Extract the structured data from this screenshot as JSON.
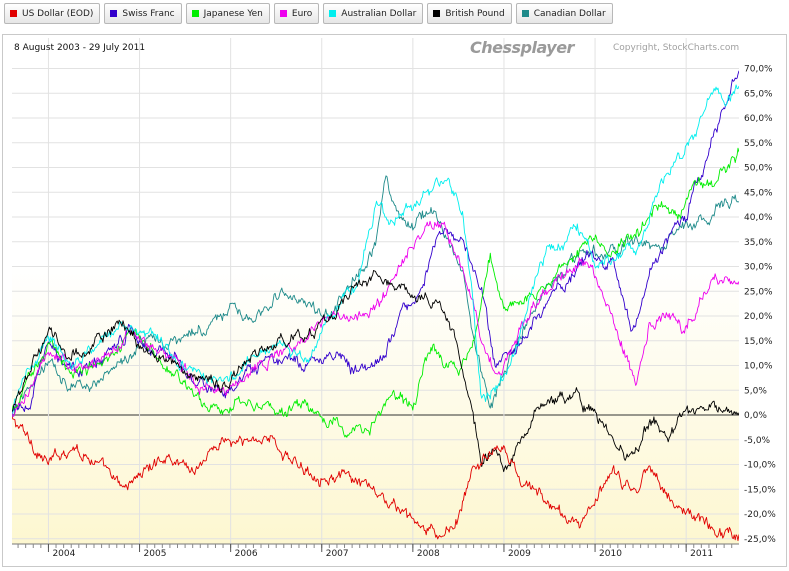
{
  "legend": [
    {
      "label": "US Dollar (EOD)",
      "color": "#e00000"
    },
    {
      "label": "Swiss Franc",
      "color": "#3300cc"
    },
    {
      "label": "Japanese Yen",
      "color": "#00ee00"
    },
    {
      "label": "Euro",
      "color": "#ee00ee"
    },
    {
      "label": "Australian Dollar",
      "color": "#00eeee"
    },
    {
      "label": "British Pound",
      "color": "#000000"
    },
    {
      "label": "Canadian Dollar",
      "color": "#1e8a8a"
    }
  ],
  "header": {
    "date_range": "8 August 2003 - 29 July 2011",
    "watermark": "Chessplayer",
    "copyright": "Copyright, StockCharts.com"
  },
  "chart_data": {
    "type": "line",
    "title": "",
    "xlabel": "",
    "ylabel": "",
    "x_range": [
      2003.6,
      2011.58
    ],
    "ylim": [
      -26,
      72
    ],
    "y_ticks": [
      70,
      65,
      60,
      55,
      50,
      45,
      40,
      35,
      30,
      25,
      20,
      15,
      10,
      5,
      0,
      -5,
      -10,
      -15,
      -20,
      -25
    ],
    "y_tick_labels": [
      "70,0%",
      "65,0%",
      "60,0%",
      "55,0%",
      "50,0%",
      "45,0%",
      "40,0%",
      "35,0%",
      "30,0%",
      "25,0%",
      "20,0%",
      "15,0%",
      "10,0%",
      "5,0%",
      "0,0%",
      "-5,0%",
      "-10,0%",
      "-15,0%",
      "-20,0%",
      "-25,0%"
    ],
    "x_ticks": [
      2004,
      2005,
      2006,
      2007,
      2008,
      2009,
      2010,
      2011
    ],
    "x_tick_labels": [
      "2004",
      "2005",
      "2006",
      "2007",
      "2008",
      "2009",
      "2010",
      "2011"
    ],
    "zero_line": 0,
    "series": [
      {
        "name": "US Dollar (EOD)",
        "color": "#e00000",
        "x": [
          2003.6,
          2003.75,
          2004.0,
          2004.25,
          2004.5,
          2004.8,
          2005.0,
          2005.3,
          2005.6,
          2005.9,
          2006.1,
          2006.4,
          2006.7,
          2007.0,
          2007.3,
          2007.6,
          2007.9,
          2008.1,
          2008.3,
          2008.5,
          2008.65,
          2008.8,
          2009.0,
          2009.2,
          2009.4,
          2009.6,
          2009.8,
          2009.95,
          2010.2,
          2010.45,
          2010.6,
          2010.85,
          2011.05,
          2011.3,
          2011.58
        ],
        "y": [
          -1,
          -4,
          -10,
          -6,
          -9,
          -15,
          -12,
          -8,
          -11,
          -5,
          -6,
          -4,
          -10,
          -12,
          -13,
          -16,
          -20,
          -23,
          -25,
          -21,
          -12,
          -8,
          -7,
          -14,
          -16,
          -20,
          -22,
          -19,
          -12,
          -16,
          -9,
          -18,
          -20,
          -23,
          -24
        ]
      },
      {
        "name": "Swiss Franc",
        "color": "#3300cc",
        "x": [
          2003.6,
          2003.8,
          2004.0,
          2004.3,
          2004.6,
          2004.9,
          2005.1,
          2005.4,
          2005.7,
          2005.95,
          2006.2,
          2006.5,
          2006.8,
          2007.1,
          2007.4,
          2007.7,
          2007.9,
          2008.1,
          2008.3,
          2008.6,
          2008.75,
          2008.9,
          2009.1,
          2009.3,
          2009.6,
          2009.9,
          2010.2,
          2010.4,
          2010.6,
          2010.8,
          2011.0,
          2011.2,
          2011.4,
          2011.58
        ],
        "y": [
          0,
          3,
          14,
          8,
          12,
          18,
          14,
          12,
          6,
          4,
          8,
          11,
          10,
          13,
          9,
          12,
          22,
          26,
          38,
          33,
          25,
          10,
          12,
          18,
          26,
          32,
          30,
          17,
          28,
          36,
          40,
          50,
          62,
          70
        ]
      },
      {
        "name": "Japanese Yen",
        "color": "#00ee00",
        "x": [
          2003.6,
          2003.8,
          2004.0,
          2004.3,
          2004.6,
          2004.9,
          2005.1,
          2005.4,
          2005.7,
          2005.9,
          2006.2,
          2006.5,
          2006.8,
          2007.1,
          2007.4,
          2007.6,
          2007.8,
          2008.0,
          2008.2,
          2008.5,
          2008.7,
          2008.85,
          2009.0,
          2009.2,
          2009.4,
          2009.6,
          2009.9,
          2010.2,
          2010.5,
          2010.7,
          2010.9,
          2011.1,
          2011.35,
          2011.58
        ],
        "y": [
          0,
          8,
          14,
          9,
          11,
          17,
          13,
          8,
          3,
          1,
          4,
          0,
          2,
          -2,
          -4,
          -1,
          4,
          2,
          14,
          8,
          18,
          32,
          20,
          24,
          25,
          30,
          35,
          34,
          37,
          42,
          40,
          46,
          48,
          53
        ]
      },
      {
        "name": "Euro",
        "color": "#ee00ee",
        "x": [
          2003.6,
          2003.8,
          2004.0,
          2004.3,
          2004.6,
          2004.9,
          2005.1,
          2005.4,
          2005.7,
          2005.95,
          2006.2,
          2006.5,
          2006.8,
          2007.1,
          2007.4,
          2007.7,
          2007.95,
          2008.15,
          2008.35,
          2008.55,
          2008.75,
          2008.95,
          2009.1,
          2009.3,
          2009.6,
          2009.9,
          2010.1,
          2010.3,
          2010.45,
          2010.6,
          2010.8,
          2011.0,
          2011.2,
          2011.4,
          2011.58
        ],
        "y": [
          0,
          4,
          14,
          9,
          11,
          17,
          14,
          10,
          6,
          5,
          9,
          13,
          15,
          20,
          19,
          24,
          33,
          38,
          40,
          29,
          15,
          8,
          15,
          21,
          28,
          32,
          25,
          14,
          6,
          18,
          20,
          17,
          25,
          28,
          26
        ]
      },
      {
        "name": "Australian Dollar",
        "color": "#00eeee",
        "x": [
          2003.6,
          2003.75,
          2004.0,
          2004.25,
          2004.5,
          2004.8,
          2005.1,
          2005.4,
          2005.7,
          2005.95,
          2006.2,
          2006.5,
          2006.8,
          2007.1,
          2007.4,
          2007.6,
          2007.8,
          2008.0,
          2008.2,
          2008.4,
          2008.55,
          2008.65,
          2008.75,
          2008.85,
          2009.0,
          2009.2,
          2009.4,
          2009.6,
          2009.8,
          2010.0,
          2010.2,
          2010.5,
          2010.7,
          2010.9,
          2011.1,
          2011.3,
          2011.45,
          2011.58
        ],
        "y": [
          0,
          8,
          16,
          10,
          13,
          19,
          17,
          11,
          9,
          6,
          12,
          14,
          11,
          20,
          27,
          43,
          38,
          42,
          45,
          48,
          40,
          25,
          3,
          5,
          8,
          18,
          31,
          35,
          38,
          30,
          32,
          34,
          46,
          52,
          56,
          67,
          63,
          65
        ]
      },
      {
        "name": "British Pound",
        "color": "#000000",
        "x": [
          2003.6,
          2003.8,
          2004.0,
          2004.2,
          2004.5,
          2004.8,
          2005.0,
          2005.3,
          2005.6,
          2005.9,
          2006.1,
          2006.4,
          2006.7,
          2007.0,
          2007.3,
          2007.6,
          2007.9,
          2008.1,
          2008.3,
          2008.5,
          2008.65,
          2008.75,
          2008.9,
          2009.0,
          2009.2,
          2009.4,
          2009.6,
          2009.8,
          2010.0,
          2010.2,
          2010.4,
          2010.6,
          2010.8,
          2011.0,
          2011.2,
          2011.4,
          2011.58
        ],
        "y": [
          0,
          10,
          17,
          12,
          14,
          19,
          14,
          11,
          8,
          6,
          10,
          14,
          15,
          18,
          24,
          29,
          26,
          24,
          22,
          14,
          2,
          -10,
          -7,
          -12,
          -5,
          2,
          4,
          3,
          0,
          -6,
          -9,
          -2,
          -3,
          -1,
          2,
          1,
          0
        ]
      },
      {
        "name": "Canadian Dollar",
        "color": "#1e8a8a",
        "x": [
          2003.6,
          2003.8,
          2004.0,
          2004.3,
          2004.6,
          2004.9,
          2005.1,
          2005.4,
          2005.7,
          2006.0,
          2006.2,
          2006.5,
          2006.8,
          2007.1,
          2007.3,
          2007.6,
          2007.7,
          2007.85,
          2008.0,
          2008.2,
          2008.4,
          2008.55,
          2008.7,
          2008.85,
          2009.0,
          2009.2,
          2009.4,
          2009.6,
          2009.85,
          2010.1,
          2010.4,
          2010.7,
          2010.95,
          2011.2,
          2011.4,
          2011.58
        ],
        "y": [
          0,
          6,
          10,
          6,
          8,
          13,
          16,
          14,
          17,
          22,
          18,
          24,
          22,
          20,
          25,
          35,
          48,
          40,
          38,
          42,
          36,
          28,
          12,
          2,
          8,
          17,
          24,
          28,
          33,
          32,
          35,
          34,
          38,
          40,
          43,
          44
        ]
      }
    ]
  }
}
